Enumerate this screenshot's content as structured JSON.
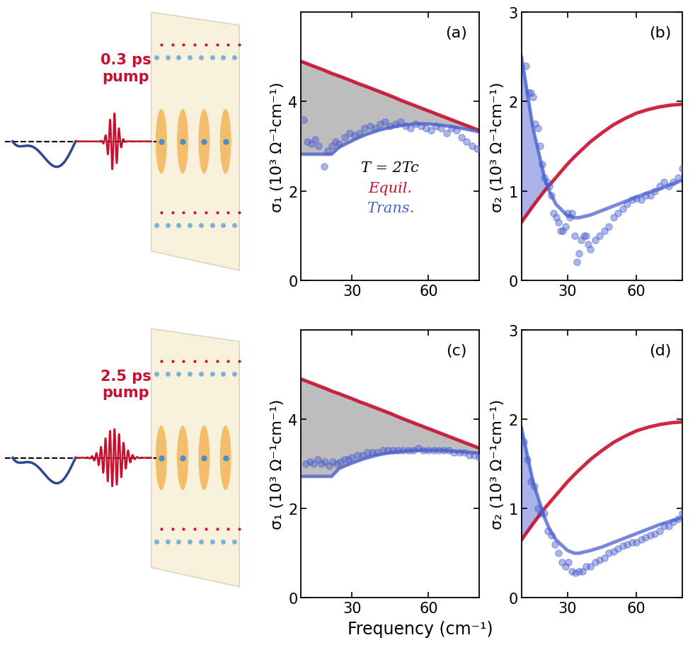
{
  "figure": {
    "xlabel": "Frequency (cm⁻¹)",
    "pump_labels": [
      "0.3 ps\npump",
      "2.5 ps\npump"
    ]
  },
  "chart_data": [
    {
      "type": "line",
      "title": "(a)",
      "ylabel": "σ₁ (10³ Ω⁻¹cm⁻¹)",
      "xlim": [
        10,
        80
      ],
      "xticks": [
        30,
        60
      ],
      "ylim": [
        0,
        6
      ],
      "yticks": [
        0,
        2,
        4
      ],
      "annotations": [
        "T = 2Tc"
      ],
      "series": [
        {
          "name": "Equil.",
          "color": "#c8102e",
          "x": [
            10,
            15,
            20,
            22,
            25,
            30,
            33,
            35,
            40,
            45,
            50,
            55,
            60,
            65,
            70,
            75,
            80
          ],
          "values": [
            4.9,
            4.79,
            4.68,
            4.63,
            4.57,
            4.46,
            4.39,
            4.35,
            4.24,
            4.13,
            4.01,
            3.9,
            3.79,
            3.68,
            3.57,
            3.46,
            3.35
          ]
        },
        {
          "name": "Trans.",
          "color": "#4a5fcf",
          "x": [
            10,
            15,
            20,
            22,
            25,
            30,
            33,
            35,
            40,
            45,
            50,
            55,
            60,
            65,
            70,
            75,
            80
          ],
          "values": [
            2.82,
            2.82,
            2.82,
            2.82,
            2.98,
            3.12,
            3.2,
            3.25,
            3.35,
            3.42,
            3.47,
            3.5,
            3.5,
            3.47,
            3.43,
            3.38,
            3.32
          ]
        },
        {
          "type": "scatter",
          "color": "#4a5fcf",
          "marker": "o",
          "x": [
            11,
            12.5,
            14,
            15.5,
            17,
            19,
            20.5,
            22,
            23.5,
            25,
            27,
            29,
            31,
            33,
            35,
            37,
            39,
            41,
            43,
            45,
            47,
            49,
            51,
            53,
            55,
            57,
            59,
            61,
            63,
            65,
            67,
            69,
            71,
            73,
            75,
            77,
            79
          ],
          "values": [
            3.6,
            3.1,
            3.05,
            3.15,
            3.0,
            2.55,
            2.9,
            3.0,
            3.1,
            3.05,
            3.2,
            3.3,
            3.25,
            3.3,
            3.4,
            3.45,
            3.4,
            3.5,
            3.55,
            3.45,
            3.5,
            3.55,
            3.45,
            3.4,
            3.5,
            3.45,
            3.4,
            3.35,
            3.45,
            3.4,
            3.3,
            3.4,
            3.35,
            3.2,
            3.1,
            3.0,
            2.95
          ]
        }
      ]
    },
    {
      "type": "line",
      "title": "(b)",
      "ylabel": "σ₂ (10³ Ω⁻¹cm⁻¹)",
      "xlim": [
        10,
        80
      ],
      "xticks": [
        30,
        60
      ],
      "ylim": [
        0,
        3
      ],
      "yticks": [
        0,
        1,
        2,
        3
      ],
      "series": [
        {
          "color": "#c8102e",
          "x": [
            10,
            15,
            20,
            22,
            25,
            30,
            33,
            35,
            40,
            45,
            50,
            55,
            60,
            65,
            70,
            75,
            80
          ],
          "values": [
            0.65,
            0.83,
            1.0,
            1.06,
            1.15,
            1.3,
            1.38,
            1.43,
            1.55,
            1.65,
            1.74,
            1.81,
            1.87,
            1.91,
            1.94,
            1.96,
            1.97
          ]
        },
        {
          "color": "#4a5fcf",
          "x": [
            10,
            15,
            20,
            22,
            25,
            30,
            33,
            35,
            40,
            45,
            50,
            55,
            60,
            65,
            70,
            75,
            80
          ],
          "values": [
            2.5,
            1.7,
            1.15,
            1.0,
            0.85,
            0.72,
            0.7,
            0.7,
            0.73,
            0.78,
            0.83,
            0.88,
            0.93,
            0.98,
            1.02,
            1.07,
            1.12
          ]
        },
        {
          "type": "scatter",
          "color": "#4a5fcf",
          "marker": "o",
          "x": [
            12,
            13,
            14,
            15,
            16,
            17,
            18,
            19,
            20,
            21,
            22,
            23,
            24,
            25,
            26,
            27,
            28,
            29,
            30,
            31,
            32,
            33,
            34,
            35,
            36,
            37,
            38,
            39,
            40,
            42,
            44,
            46,
            48,
            50,
            52,
            54,
            56,
            58,
            60,
            62,
            64,
            66,
            68,
            70,
            72,
            74,
            76,
            78,
            80
          ],
          "values": [
            2.4,
            2.1,
            2.1,
            2.05,
            1.75,
            1.7,
            1.5,
            1.3,
            1.15,
            1.1,
            1.05,
            0.95,
            0.75,
            0.7,
            0.65,
            0.55,
            0.55,
            0.6,
            0.75,
            0.7,
            0.75,
            0.5,
            0.2,
            0.3,
            0.45,
            0.5,
            0.5,
            0.4,
            0.35,
            0.45,
            0.5,
            0.55,
            0.6,
            0.7,
            0.75,
            0.8,
            0.85,
            0.9,
            0.92,
            0.9,
            0.95,
            0.95,
            1.0,
            1.05,
            1.1,
            1.05,
            1.1,
            1.15,
            1.25
          ]
        }
      ]
    },
    {
      "type": "line",
      "title": "(c)",
      "ylabel": "σ₁ (10³ Ω⁻¹cm⁻¹)",
      "xlim": [
        10,
        80
      ],
      "xticks": [
        30,
        60
      ],
      "ylim": [
        0,
        6
      ],
      "yticks": [
        0,
        2,
        4
      ],
      "series": [
        {
          "color": "#c8102e",
          "x": [
            10,
            15,
            20,
            22,
            25,
            30,
            33,
            35,
            40,
            45,
            50,
            55,
            60,
            65,
            70,
            75,
            80
          ],
          "values": [
            4.9,
            4.79,
            4.68,
            4.63,
            4.57,
            4.46,
            4.39,
            4.35,
            4.24,
            4.13,
            4.01,
            3.9,
            3.79,
            3.68,
            3.57,
            3.46,
            3.35
          ]
        },
        {
          "color": "#4a5fcf",
          "x": [
            10,
            15,
            20,
            22,
            25,
            30,
            33,
            35,
            40,
            45,
            50,
            55,
            60,
            65,
            70,
            75,
            80
          ],
          "values": [
            2.72,
            2.72,
            2.72,
            2.72,
            2.9,
            3.02,
            3.08,
            3.12,
            3.2,
            3.25,
            3.28,
            3.3,
            3.3,
            3.3,
            3.28,
            3.26,
            3.24
          ]
        },
        {
          "type": "scatter",
          "color": "#4a5fcf",
          "marker": "o",
          "x": [
            12,
            13.5,
            15,
            16.5,
            18,
            19.5,
            21,
            22.5,
            24,
            25.5,
            27,
            28.5,
            30,
            32,
            34,
            36,
            38,
            40,
            42,
            44,
            46,
            48,
            50,
            52,
            54,
            56,
            58,
            60,
            62,
            64,
            66,
            68,
            70,
            72,
            74,
            76,
            78,
            80
          ],
          "values": [
            3.0,
            3.05,
            3.0,
            3.1,
            3.0,
            3.05,
            2.95,
            3.05,
            3.0,
            3.05,
            3.1,
            3.1,
            3.15,
            3.2,
            3.2,
            3.25,
            3.25,
            3.25,
            3.3,
            3.3,
            3.3,
            3.3,
            3.3,
            3.3,
            3.3,
            3.35,
            3.3,
            3.3,
            3.3,
            3.3,
            3.3,
            3.3,
            3.25,
            3.25,
            3.25,
            3.2,
            3.2,
            3.15
          ]
        }
      ]
    },
    {
      "type": "line",
      "title": "(d)",
      "ylabel": "σ₂ (10³ Ω⁻¹cm⁻¹)",
      "xlim": [
        10,
        80
      ],
      "xticks": [
        30,
        60
      ],
      "ylim": [
        0,
        3
      ],
      "yticks": [
        0,
        1,
        2,
        3
      ],
      "series": [
        {
          "color": "#c8102e",
          "x": [
            10,
            15,
            20,
            22,
            25,
            30,
            33,
            35,
            40,
            45,
            50,
            55,
            60,
            65,
            70,
            75,
            80
          ],
          "values": [
            0.65,
            0.83,
            1.0,
            1.06,
            1.15,
            1.3,
            1.38,
            1.43,
            1.55,
            1.65,
            1.74,
            1.81,
            1.87,
            1.91,
            1.94,
            1.96,
            1.97
          ]
        },
        {
          "color": "#4a5fcf",
          "x": [
            10,
            15,
            20,
            22,
            25,
            30,
            33,
            35,
            40,
            45,
            50,
            55,
            60,
            65,
            70,
            75,
            80
          ],
          "values": [
            1.9,
            1.3,
            0.9,
            0.78,
            0.65,
            0.53,
            0.5,
            0.5,
            0.53,
            0.57,
            0.62,
            0.67,
            0.72,
            0.77,
            0.82,
            0.86,
            0.9
          ]
        },
        {
          "type": "scatter",
          "color": "#4a5fcf",
          "marker": "o",
          "x": [
            11,
            12.5,
            14,
            15.5,
            17,
            18.5,
            20,
            21.5,
            23,
            24.5,
            26,
            27.5,
            29,
            30.5,
            32,
            33.5,
            35,
            36.5,
            38,
            40,
            42,
            44,
            46,
            48,
            50,
            52,
            54,
            56,
            58,
            60,
            62,
            64,
            66,
            68,
            70,
            72,
            74,
            76,
            78,
            80
          ],
          "values": [
            1.75,
            1.55,
            1.3,
            1.25,
            1.0,
            0.95,
            0.95,
            0.75,
            0.7,
            0.6,
            0.5,
            0.4,
            0.35,
            0.4,
            0.3,
            0.28,
            0.3,
            0.3,
            0.35,
            0.35,
            0.4,
            0.42,
            0.45,
            0.5,
            0.52,
            0.55,
            0.58,
            0.6,
            0.62,
            0.62,
            0.65,
            0.68,
            0.7,
            0.72,
            0.75,
            0.8,
            0.8,
            0.85,
            0.88,
            0.95
          ]
        }
      ]
    }
  ]
}
